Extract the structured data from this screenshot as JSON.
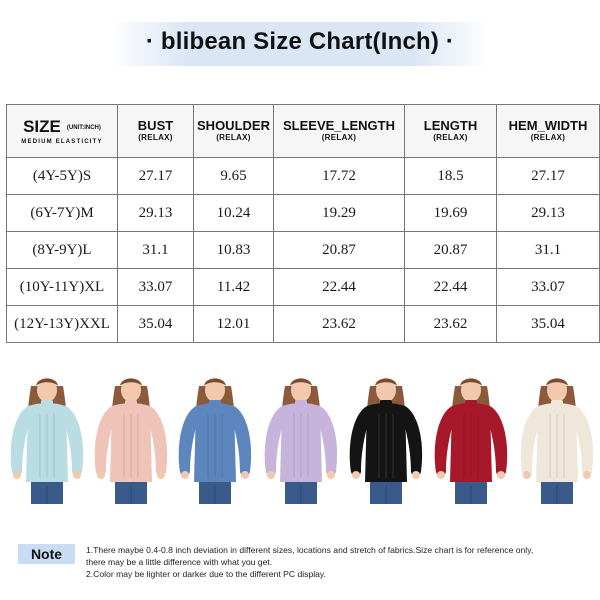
{
  "title": "· blibean Size Chart(Inch) ·",
  "table": {
    "size_header": {
      "label": "SIZE",
      "unit": "(UNIT:INCH)",
      "elasticity": "MEDIUM ELASTICITY"
    },
    "columns": [
      {
        "label": "BUST",
        "sub": "(RELAX)"
      },
      {
        "label": "SHOULDER",
        "sub": "(RELAX)"
      },
      {
        "label": "SLEEVE_LENGTH",
        "sub": "(RELAX)"
      },
      {
        "label": "LENGTH",
        "sub": "(RELAX)"
      },
      {
        "label": "HEM_WIDTH",
        "sub": "(RELAX)"
      }
    ],
    "rows": [
      {
        "size": "(4Y-5Y)S",
        "values": [
          "27.17",
          "9.65",
          "17.72",
          "18.5",
          "27.17"
        ]
      },
      {
        "size": "(6Y-7Y)M",
        "values": [
          "29.13",
          "10.24",
          "19.29",
          "19.69",
          "29.13"
        ]
      },
      {
        "size": "(8Y-9Y)L",
        "values": [
          "31.1",
          "10.83",
          "20.87",
          "20.87",
          "31.1"
        ]
      },
      {
        "size": "(10Y-11Y)XL",
        "values": [
          "33.07",
          "11.42",
          "22.44",
          "22.44",
          "33.07"
        ]
      },
      {
        "size": "(12Y-13Y)XXL",
        "values": [
          "35.04",
          "12.01",
          "23.62",
          "23.62",
          "35.04"
        ]
      }
    ]
  },
  "models": [
    {
      "color_name": "light-blue",
      "color": "#b9dde2"
    },
    {
      "color_name": "pink",
      "color": "#efc3b8"
    },
    {
      "color_name": "blue",
      "color": "#5c86bd"
    },
    {
      "color_name": "lavender",
      "color": "#c7b4dd"
    },
    {
      "color_name": "black",
      "color": "#141414"
    },
    {
      "color_name": "red",
      "color": "#a8182b"
    },
    {
      "color_name": "cream",
      "color": "#efe7da"
    }
  ],
  "note": {
    "label": "Note",
    "line1": "1.There maybe 0.4-0.8 inch deviation in different sizes, locations and  stretch of fabrics.Size chart is for reference only,",
    "line2": "there may be a little difference with what you get.",
    "line3": "2.Color may be lighter or darker due to the different PC display."
  }
}
